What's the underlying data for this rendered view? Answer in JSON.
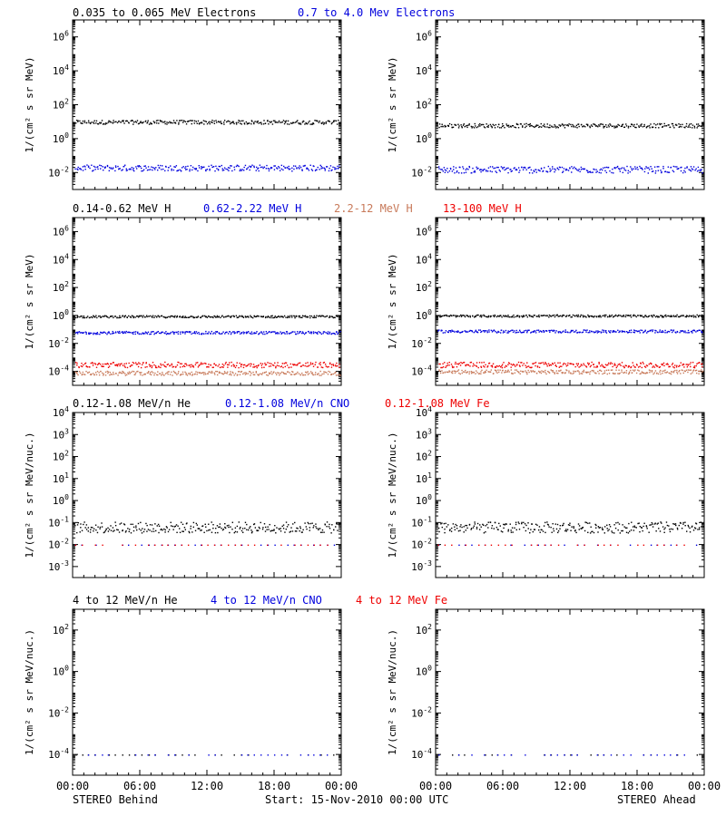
{
  "colors": {
    "black": "#000000",
    "blue": "#0000dd",
    "red": "#ee0000",
    "brown": "#c87a5a"
  },
  "header_row1": [
    {
      "text": "0.035 to 0.065 MeV Electrons",
      "color": "#000000"
    },
    {
      "text": "0.7 to 4.0 Mev Electrons",
      "color": "#0000dd"
    }
  ],
  "header_row2": [
    {
      "text": "0.14-0.62 MeV H",
      "color": "#000000"
    },
    {
      "text": "0.62-2.22 MeV H",
      "color": "#0000dd"
    },
    {
      "text": "2.2-12 MeV H",
      "color": "#c87a5a"
    },
    {
      "text": "13-100 MeV H",
      "color": "#ee0000"
    }
  ],
  "header_row3": [
    {
      "text": "0.12-1.08 MeV/n He",
      "color": "#000000"
    },
    {
      "text": "0.12-1.08 MeV/n CNO",
      "color": "#0000dd"
    },
    {
      "text": "0.12-1.08 MeV Fe",
      "color": "#ee0000"
    }
  ],
  "header_row4": [
    {
      "text": "4 to 12 MeV/n He",
      "color": "#000000"
    },
    {
      "text": "4 to 12 MeV/n CNO",
      "color": "#0000dd"
    },
    {
      "text": "4 to 12 MeV Fe",
      "color": "#ee0000"
    }
  ],
  "ylabel_flux": "1/(cm² s sr MeV)",
  "ylabel_nuc": "1/(cm² s sr MeV/nuc.)",
  "xtick_labels": [
    "00:00",
    "06:00",
    "12:00",
    "18:00",
    "00:00"
  ],
  "footer": {
    "left": "STEREO Behind",
    "center": "Start: 15-Nov-2010 00:00 UTC",
    "right": "STEREO Ahead"
  },
  "chart_data": [
    {
      "type": "scatter",
      "panel": "electrons-behind",
      "yscale": "log",
      "ylim_exp": [
        -3,
        7
      ],
      "ytick_exps": [
        -2,
        0,
        2,
        4,
        6
      ],
      "series": [
        {
          "name": "0.035 to 0.065 MeV Electrons",
          "color": "#000000",
          "level_exp": 1.0,
          "spread": 0.12
        },
        {
          "name": "0.7 to 4.0 Mev Electrons",
          "color": "#0000dd",
          "level_exp": -1.7,
          "spread": 0.18
        }
      ]
    },
    {
      "type": "scatter",
      "panel": "electrons-ahead",
      "yscale": "log",
      "ylim_exp": [
        -3,
        7
      ],
      "ytick_exps": [
        -2,
        0,
        2,
        4,
        6
      ],
      "series": [
        {
          "name": "0.035 to 0.065 MeV Electrons",
          "color": "#000000",
          "level_exp": 0.8,
          "spread": 0.12
        },
        {
          "name": "0.7 to 4.0 Mev Electrons",
          "color": "#0000dd",
          "level_exp": -1.8,
          "spread": 0.2
        }
      ]
    },
    {
      "type": "scatter",
      "panel": "protons-behind",
      "yscale": "log",
      "ylim_exp": [
        -5,
        7
      ],
      "ytick_exps": [
        -4,
        -2,
        0,
        2,
        4,
        6
      ],
      "series": [
        {
          "name": "0.14-0.62 MeV H",
          "color": "#000000",
          "level_exp": -0.05,
          "spread": 0.08
        },
        {
          "name": "0.62-2.22 MeV H",
          "color": "#0000dd",
          "level_exp": -1.2,
          "spread": 0.1
        },
        {
          "name": "2.2-12 MeV H",
          "color": "#c87a5a",
          "level_exp": -4.1,
          "spread": 0.15
        },
        {
          "name": "13-100 MeV H",
          "color": "#ee0000",
          "level_exp": -3.5,
          "spread": 0.2
        }
      ]
    },
    {
      "type": "scatter",
      "panel": "protons-ahead",
      "yscale": "log",
      "ylim_exp": [
        -5,
        7
      ],
      "ytick_exps": [
        -4,
        -2,
        0,
        2,
        4,
        6
      ],
      "series": [
        {
          "name": "0.14-0.62 MeV H",
          "color": "#000000",
          "level_exp": 0.0,
          "spread": 0.08
        },
        {
          "name": "0.62-2.22 MeV H",
          "color": "#0000dd",
          "level_exp": -1.1,
          "spread": 0.1
        },
        {
          "name": "2.2-12 MeV H",
          "color": "#c87a5a",
          "level_exp": -4.0,
          "spread": 0.15
        },
        {
          "name": "13-100 MeV H",
          "color": "#ee0000",
          "level_exp": -3.5,
          "spread": 0.2
        }
      ]
    },
    {
      "type": "scatter",
      "panel": "heavy-low-behind",
      "yscale": "log",
      "ylim_exp": [
        -3.5,
        4
      ],
      "ytick_exps": [
        -3,
        -2,
        -1,
        0,
        1,
        2,
        3,
        4
      ],
      "series": [
        {
          "name": "0.12-1.08 MeV/n He",
          "color": "#000000",
          "level_exp": -1.2,
          "spread": 0.25
        },
        {
          "name": "0.12-1.08 MeV/n CNO",
          "color": "#0000dd",
          "level_exp": -2.0,
          "spread": 0.0
        },
        {
          "name": "0.12-1.08 MeV Fe",
          "color": "#ee0000",
          "level_exp": -2.0,
          "spread": 0.0
        }
      ]
    },
    {
      "type": "scatter",
      "panel": "heavy-low-ahead",
      "yscale": "log",
      "ylim_exp": [
        -3.5,
        4
      ],
      "ytick_exps": [
        -3,
        -2,
        -1,
        0,
        1,
        2,
        3,
        4
      ],
      "series": [
        {
          "name": "0.12-1.08 MeV/n He",
          "color": "#000000",
          "level_exp": -1.2,
          "spread": 0.25
        },
        {
          "name": "0.12-1.08 MeV/n CNO",
          "color": "#0000dd",
          "level_exp": -2.0,
          "spread": 0.0
        },
        {
          "name": "0.12-1.08 MeV Fe",
          "color": "#ee0000",
          "level_exp": -2.0,
          "spread": 0.0
        }
      ]
    },
    {
      "type": "scatter",
      "panel": "heavy-high-behind",
      "yscale": "log",
      "ylim_exp": [
        -5,
        3
      ],
      "ytick_exps": [
        -4,
        -2,
        0,
        2
      ],
      "series": [
        {
          "name": "4 to 12 MeV/n He",
          "color": "#000000",
          "level_exp": -4.0,
          "spread": 0.0
        },
        {
          "name": "4 to 12 MeV/n CNO",
          "color": "#0000dd",
          "level_exp": -4.0,
          "spread": 0.0
        }
      ]
    },
    {
      "type": "scatter",
      "panel": "heavy-high-ahead",
      "yscale": "log",
      "ylim_exp": [
        -5,
        3
      ],
      "ytick_exps": [
        -4,
        -2,
        0,
        2
      ],
      "series": [
        {
          "name": "4 to 12 MeV/n He",
          "color": "#000000",
          "level_exp": -4.0,
          "spread": 0.0
        },
        {
          "name": "4 to 12 MeV/n CNO",
          "color": "#0000dd",
          "level_exp": -4.0,
          "spread": 0.0
        }
      ]
    }
  ]
}
